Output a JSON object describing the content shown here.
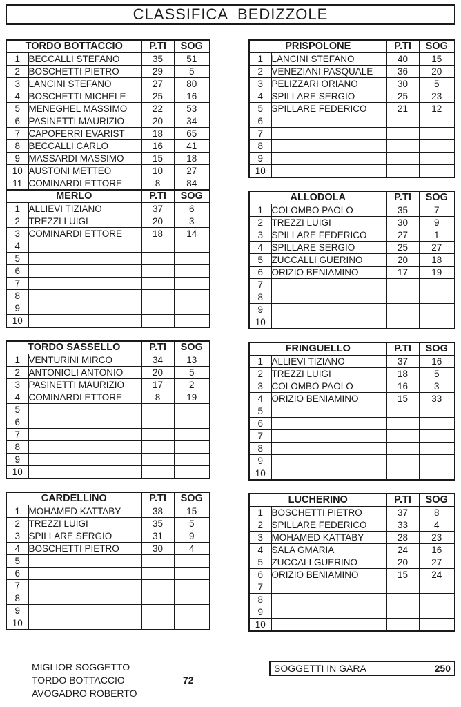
{
  "title": "CLASSIFICA  BEDIZZOLE",
  "columns": {
    "pti": "P.TI",
    "sog": "SOG"
  },
  "tables": [
    {
      "id": "tordo_bottaccio",
      "name": "TORDO BOTTACCIO",
      "rows": 11,
      "entries": [
        {
          "name": "BECCALLI STEFANO",
          "pti": "35",
          "sog": "51"
        },
        {
          "name": "BOSCHETTI PIETRO",
          "pti": "29",
          "sog": "5"
        },
        {
          "name": "LANCINI STEFANO",
          "pti": "27",
          "sog": "80"
        },
        {
          "name": "BOSCHETTI MICHELE",
          "pti": "25",
          "sog": "16"
        },
        {
          "name": "MENEGHEL MASSIMO",
          "pti": "22",
          "sog": "53"
        },
        {
          "name": "PASINETTI MAURIZIO",
          "pti": "20",
          "sog": "34"
        },
        {
          "name": "CAPOFERRI EVARIST",
          "pti": "18",
          "sog": "65"
        },
        {
          "name": "BECCALLI CARLO",
          "pti": "16",
          "sog": "41"
        },
        {
          "name": "MASSARDI MASSIMO",
          "pti": "15",
          "sog": "18"
        },
        {
          "name": "AUSTONI METTEO",
          "pti": "10",
          "sog": "27"
        },
        {
          "name": "COMINARDI ETTORE",
          "pti": "8",
          "sog": "84"
        }
      ]
    },
    {
      "id": "merlo",
      "name": "MERLO",
      "rows": 10,
      "entries": [
        {
          "name": "ALLIEVI TIZIANO",
          "pti": "37",
          "sog": "6"
        },
        {
          "name": "TREZZI LUIGI",
          "pti": "20",
          "sog": "3"
        },
        {
          "name": "COMINARDI ETTORE",
          "pti": "18",
          "sog": "14"
        }
      ]
    },
    {
      "id": "tordo_sassello",
      "name": "TORDO SASSELLO",
      "rows": 10,
      "entries": [
        {
          "name": "VENTURINI MIRCO",
          "pti": "34",
          "sog": "13"
        },
        {
          "name": "ANTONIOLI ANTONIO",
          "pti": "20",
          "sog": "5"
        },
        {
          "name": "PASINETTI MAURIZIO",
          "pti": "17",
          "sog": "2"
        },
        {
          "name": "COMINARDI ETTORE",
          "pti": "8",
          "sog": "19"
        }
      ]
    },
    {
      "id": "cardellino",
      "name": "CARDELLINO",
      "rows": 10,
      "entries": [
        {
          "name": "MOHAMED KATTABY",
          "pti": "38",
          "sog": "15"
        },
        {
          "name": "TREZZI LUIGI",
          "pti": "35",
          "sog": "5"
        },
        {
          "name": "SPILLARE SERGIO",
          "pti": "31",
          "sog": "9"
        },
        {
          "name": "BOSCHETTI PIETRO",
          "pti": "30",
          "sog": "4"
        }
      ]
    },
    {
      "id": "prispolone",
      "name": "PRISPOLONE",
      "rows": 10,
      "entries": [
        {
          "name": "LANCINI STEFANO",
          "pti": "40",
          "sog": "15"
        },
        {
          "name": "VENEZIANI PASQUALE",
          "pti": "36",
          "sog": "20"
        },
        {
          "name": "PELIZZARI ORIANO",
          "pti": "30",
          "sog": "5"
        },
        {
          "name": "SPILLARE SERGIO",
          "pti": "25",
          "sog": "23"
        },
        {
          "name": "SPILLARE FEDERICO",
          "pti": "21",
          "sog": "12"
        }
      ]
    },
    {
      "id": "allodola",
      "name": "ALLODOLA",
      "rows": 10,
      "entries": [
        {
          "name": "COLOMBO PAOLO",
          "pti": "35",
          "sog": "7"
        },
        {
          "name": "TREZZI LUIGI",
          "pti": "30",
          "sog": "9"
        },
        {
          "name": "SPILLARE FEDERICO",
          "pti": "27",
          "sog": "1"
        },
        {
          "name": "SPILLARE SERGIO",
          "pti": "25",
          "sog": "27"
        },
        {
          "name": "ZUCCALLI GUERINO",
          "pti": "20",
          "sog": "18"
        },
        {
          "name": "ORIZIO BENIAMINO",
          "pti": "17",
          "sog": "19"
        }
      ]
    },
    {
      "id": "fringuello",
      "name": "FRINGUELLO",
      "rows": 10,
      "entries": [
        {
          "name": "ALLIEVI TIZIANO",
          "pti": "37",
          "sog": "16"
        },
        {
          "name": "TREZZI LUIGI",
          "pti": "18",
          "sog": "5"
        },
        {
          "name": "COLOMBO PAOLO",
          "pti": "16",
          "sog": "3"
        },
        {
          "name": "ORIZIO BENIAMINO",
          "pti": "15",
          "sog": "33"
        }
      ]
    },
    {
      "id": "lucherino",
      "name": "LUCHERINO",
      "rows": 10,
      "entries": [
        {
          "name": "BOSCHETTI PIETRO",
          "pti": "37",
          "sog": "8"
        },
        {
          "name": "SPILLARE FEDERICO",
          "pti": "33",
          "sog": "4"
        },
        {
          "name": "MOHAMED KATTABY",
          "pti": "28",
          "sog": "23"
        },
        {
          "name": "SALA GMARIA",
          "pti": "24",
          "sog": "16"
        },
        {
          "name": "ZUCCALI GUERINO",
          "pti": "20",
          "sog": "27"
        },
        {
          "name": "ORIZIO BENIAMINO",
          "pti": "15",
          "sog": "24"
        }
      ]
    }
  ],
  "footer": {
    "best_subject_label": "MIGLIOR SOGGETTO",
    "best_subject_category": "TORDO BOTTACCIO",
    "best_subject_points": "72",
    "best_subject_name": "AVOGADRO ROBERTO",
    "subjects_label": "SOGGETTI IN GARA",
    "subjects_value": "250"
  }
}
